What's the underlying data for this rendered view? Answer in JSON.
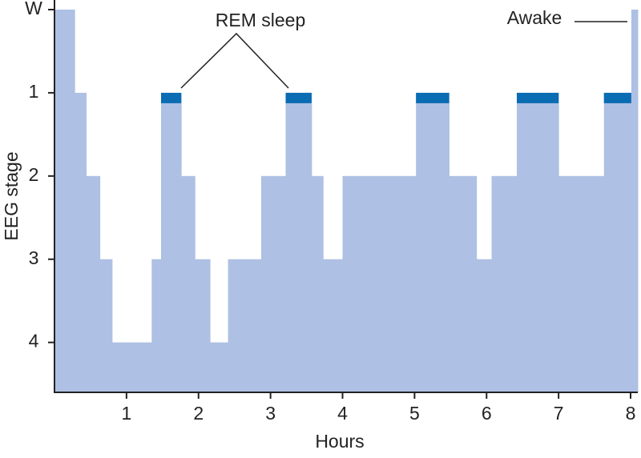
{
  "chart_data": {
    "type": "step",
    "x_label": "Hours",
    "y_label": "EEG stage",
    "x": [
      0,
      0.28,
      0.44,
      0.63,
      0.8,
      1.35,
      1.48,
      1.76,
      1.95,
      2.16,
      2.41,
      2.87,
      3.21,
      3.57,
      3.73,
      4.0,
      5.02,
      5.48,
      5.86,
      6.07,
      6.42,
      7.0,
      7.63,
      8.01
    ],
    "values": [
      0,
      1,
      2,
      3,
      4,
      3,
      1,
      2,
      3,
      4,
      3,
      2,
      1,
      2,
      3,
      2,
      1,
      2,
      3,
      2,
      1,
      2,
      1,
      0
    ],
    "rem": [
      false,
      false,
      false,
      false,
      false,
      false,
      true,
      false,
      false,
      false,
      false,
      false,
      true,
      false,
      false,
      false,
      true,
      false,
      false,
      false,
      true,
      false,
      true,
      false
    ],
    "color": "#aec0e3",
    "rem_color": "#0a6cb2",
    "xlim": [
      0,
      8.1
    ],
    "xticks": [
      1,
      2,
      3,
      4,
      5,
      6,
      7,
      8
    ],
    "ylim": [
      0,
      4.6
    ],
    "yticks": [
      {
        "value": 0,
        "label": "W"
      },
      1,
      2,
      3,
      4
    ],
    "annotations": [
      {
        "text": "REM sleep"
      },
      {
        "text": "Awake"
      }
    ]
  }
}
